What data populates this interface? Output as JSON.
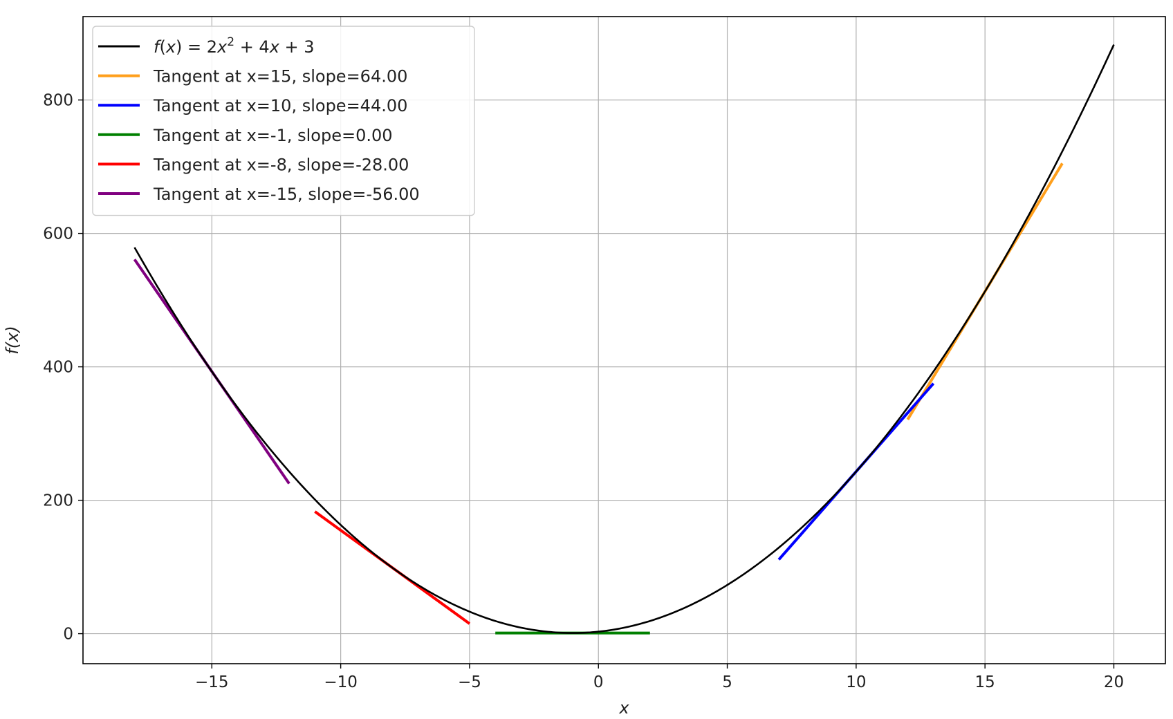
{
  "chart_data": {
    "type": "line",
    "xlabel": "x",
    "ylabel": "f(x)",
    "xlim": [
      -20,
      22
    ],
    "ylim": [
      -45,
      925
    ],
    "xticks": [
      -15,
      -10,
      -5,
      0,
      5,
      10,
      15,
      20
    ],
    "yticks": [
      0,
      200,
      400,
      600,
      800
    ],
    "xtick_labels": [
      "−15",
      "−10",
      "−5",
      "0",
      "5",
      "10",
      "15",
      "20"
    ],
    "ytick_labels": [
      "0",
      "200",
      "400",
      "600",
      "800"
    ],
    "grid": true,
    "legend_position": "top-left",
    "function": {
      "name": "f(x) = 2x² + 4x + 3",
      "name_parts": [
        "f",
        "(",
        "x",
        ") = 2",
        "x",
        "2",
        " + 4",
        "x",
        " + 3"
      ],
      "a": 2,
      "b": 4,
      "c": 3,
      "x_range": [
        -18,
        20
      ],
      "color": "#000000"
    },
    "series": [
      {
        "name": "Tangent at x=15, slope=64.00",
        "x0": 15,
        "slope": 64.0,
        "x_range": [
          12,
          18
        ],
        "color": "#ff9f1c"
      },
      {
        "name": "Tangent at x=10, slope=44.00",
        "x0": 10,
        "slope": 44.0,
        "x_range": [
          7,
          13
        ],
        "color": "#0000ff"
      },
      {
        "name": "Tangent at x=-1, slope=0.00",
        "x0": -1,
        "slope": 0.0,
        "x_range": [
          -4,
          2
        ],
        "color": "#008000"
      },
      {
        "name": "Tangent at x=-8, slope=-28.00",
        "x0": -8,
        "slope": -28.0,
        "x_range": [
          -11,
          -5
        ],
        "color": "#ff0000"
      },
      {
        "name": "Tangent at x=-15, slope=-56.00",
        "x0": -15,
        "slope": -56.0,
        "x_range": [
          -18,
          -12
        ],
        "color": "#800080"
      }
    ]
  }
}
